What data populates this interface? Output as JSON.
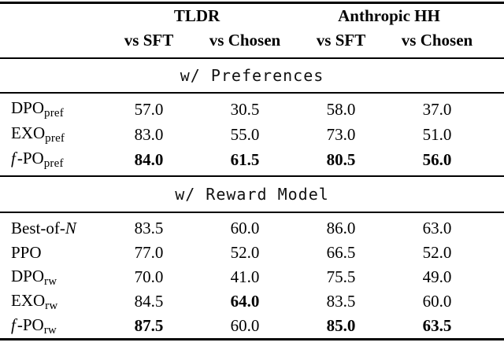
{
  "page": {
    "background": "#ffffff",
    "text_color": "#000000",
    "rule_color": "#000000"
  },
  "table": {
    "groups": [
      {
        "label": "TLDR"
      },
      {
        "label": "Anthropic HH"
      }
    ],
    "columns": [
      "vs SFT",
      "vs Chosen",
      "vs SFT",
      "vs Chosen"
    ],
    "sections": [
      {
        "title": "w/ Preferences",
        "rows": [
          {
            "label": [
              {
                "t": "DPO"
              },
              {
                "t": "pref",
                "s": "sub"
              }
            ],
            "values": [
              {
                "v": "57.0"
              },
              {
                "v": "30.5"
              },
              {
                "v": "58.0"
              },
              {
                "v": "37.0"
              }
            ]
          },
          {
            "label": [
              {
                "t": "EXO"
              },
              {
                "t": "pref",
                "s": "sub"
              }
            ],
            "values": [
              {
                "v": "83.0"
              },
              {
                "v": "55.0"
              },
              {
                "v": "73.0"
              },
              {
                "v": "51.0"
              }
            ]
          },
          {
            "label": [
              {
                "t": "f",
                "s": "italic"
              },
              {
                "t": "-PO"
              },
              {
                "t": "pref",
                "s": "sub"
              }
            ],
            "values": [
              {
                "v": "84.0",
                "b": true
              },
              {
                "v": "61.5",
                "b": true
              },
              {
                "v": "80.5",
                "b": true
              },
              {
                "v": "56.0",
                "b": true
              }
            ]
          }
        ]
      },
      {
        "title": "w/ Reward Model",
        "rows": [
          {
            "label": [
              {
                "t": "Best-of-"
              },
              {
                "t": "N",
                "s": "italic"
              }
            ],
            "values": [
              {
                "v": "83.5"
              },
              {
                "v": "60.0"
              },
              {
                "v": "86.0"
              },
              {
                "v": "63.0"
              }
            ]
          },
          {
            "label": [
              {
                "t": "PPO"
              }
            ],
            "values": [
              {
                "v": "77.0"
              },
              {
                "v": "52.0"
              },
              {
                "v": "66.5"
              },
              {
                "v": "52.0"
              }
            ]
          },
          {
            "label": [
              {
                "t": "DPO"
              },
              {
                "t": "rw",
                "s": "sub"
              }
            ],
            "values": [
              {
                "v": "70.0"
              },
              {
                "v": "41.0"
              },
              {
                "v": "75.5"
              },
              {
                "v": "49.0"
              }
            ]
          },
          {
            "label": [
              {
                "t": "EXO"
              },
              {
                "t": "rw",
                "s": "sub"
              }
            ],
            "values": [
              {
                "v": "84.5"
              },
              {
                "v": "64.0",
                "b": true
              },
              {
                "v": "83.5"
              },
              {
                "v": "60.0"
              }
            ]
          },
          {
            "label": [
              {
                "t": "f",
                "s": "italic"
              },
              {
                "t": "-PO"
              },
              {
                "t": "rw",
                "s": "sub"
              }
            ],
            "values": [
              {
                "v": "87.5",
                "b": true
              },
              {
                "v": "60.0"
              },
              {
                "v": "85.0",
                "b": true
              },
              {
                "v": "63.5",
                "b": true
              }
            ]
          }
        ]
      }
    ]
  }
}
